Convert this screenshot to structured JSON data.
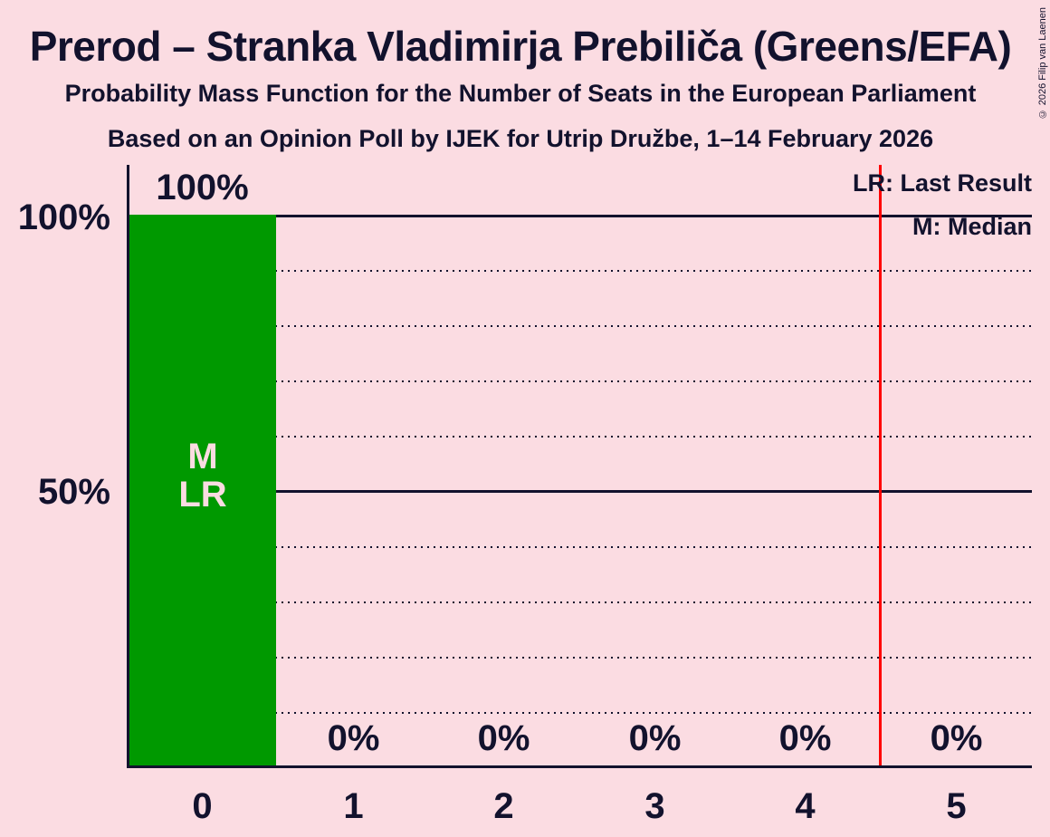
{
  "header": {
    "title": "Prerod – Stranka Vladimirja Prebiliča (Greens/EFA)",
    "subtitle": "Probability Mass Function for the Number of Seats in the European Parliament",
    "poll_details": "Based on an Opinion Poll by IJEK for Utrip Družbe, 1–14 February 2026"
  },
  "copyright": "© 2026 Filip van Laenen",
  "legend": {
    "last_result": "LR: Last Result",
    "median": "M: Median"
  },
  "y_axis": {
    "tick_100": "100%",
    "tick_50": "50%"
  },
  "bar_annotations": {
    "median": "M",
    "last_result": "LR"
  },
  "colors": {
    "background": "#fbdce2",
    "bar_green": "#009900",
    "text_ink": "#12122d",
    "last_result_line": "#ff0000"
  },
  "chart_data": {
    "type": "bar",
    "title": "Prerod – Stranka Vladimirja Prebiliča (Greens/EFA)",
    "categories": [
      "0",
      "1",
      "2",
      "3",
      "4",
      "5"
    ],
    "values": [
      100,
      0,
      0,
      0,
      0,
      0
    ],
    "value_labels": [
      "100%",
      "0%",
      "0%",
      "0%",
      "0%",
      "0%"
    ],
    "ylim": [
      0,
      100
    ],
    "y_tick_labels_shown": [
      "100%",
      "50%"
    ],
    "gridlines": "dotted every 10%, solid at 50% and 100%",
    "median_category": "0",
    "last_result_category": "0",
    "last_result_line_x": 4.5,
    "legend_position": "top-right"
  }
}
